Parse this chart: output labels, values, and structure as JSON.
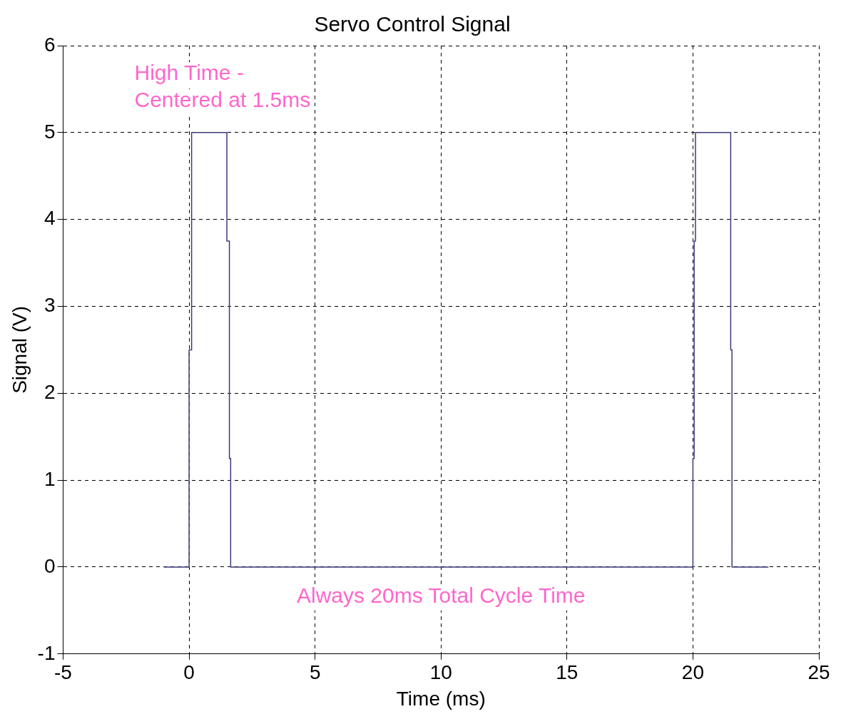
{
  "chart_data": {
    "type": "line",
    "title": "Servo Control Signal",
    "xlabel": "Time (ms)",
    "ylabel": "Signal (V)",
    "x": [
      -1,
      0,
      0,
      0.1,
      0.1,
      1.5,
      1.5,
      1.6,
      1.6,
      1.65,
      1.65,
      20,
      20,
      20.05,
      20.05,
      20.1,
      20.1,
      21.5,
      21.5,
      21.55,
      21.55,
      23
    ],
    "series": [
      {
        "color": "#3b3b78",
        "values": [
          0,
          0,
          2.5,
          2.5,
          5,
          5,
          3.75,
          3.75,
          1.25,
          1.25,
          0,
          0,
          1.25,
          1.25,
          3.75,
          3.75,
          5,
          5,
          2.5,
          2.5,
          0,
          0
        ]
      }
    ],
    "xlim": [
      -5,
      25
    ],
    "xticks": [
      -5,
      0,
      5,
      10,
      15,
      20,
      25
    ],
    "ylim": [
      -1,
      6
    ],
    "yticks": [
      -1,
      0,
      1,
      2,
      3,
      4,
      5,
      6
    ],
    "grid": true,
    "legend": false,
    "marker": "none",
    "line_style": "solid",
    "annotations": [
      "High Time -\nCentered at 1.5ms",
      "Always 20ms Total Cycle Time"
    ]
  }
}
